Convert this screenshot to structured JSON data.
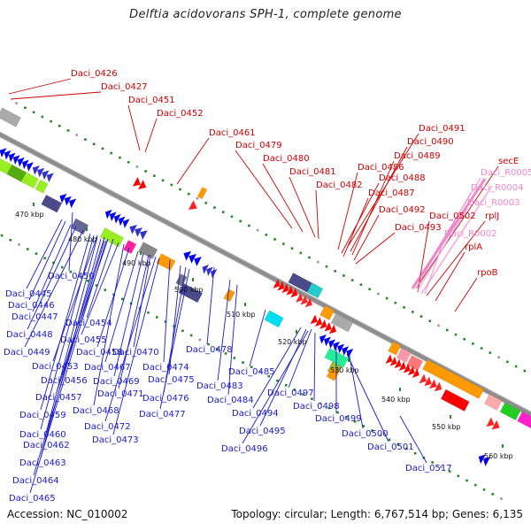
{
  "title": "Delftia acidovorans SPH-1, complete genome",
  "footer": {
    "accession": "Accession: NC_010002",
    "summary": "Topology: circular; Length: 6,767,514 bp; Genes: 6,135"
  },
  "colors": {
    "forward_label": "#cc0000",
    "reverse_label": "#1a1acc",
    "rna_label": "#ee88cc",
    "backbone": "#8c8c8c",
    "tick": "#228b22"
  },
  "kbp_ticks": [
    "470 kbp",
    "480 kbp",
    "490 kbp",
    "500 kbp",
    "510 kbp",
    "520 kbp",
    "530 kbp",
    "540 kbp",
    "550 kbp",
    "560 kbp"
  ],
  "upper_labels": [
    {
      "text": "Daci_0426",
      "color": "red"
    },
    {
      "text": "Daci_0427",
      "color": "red"
    },
    {
      "text": "Daci_0451",
      "color": "red"
    },
    {
      "text": "Daci_0452",
      "color": "red"
    },
    {
      "text": "Daci_0461",
      "color": "red"
    },
    {
      "text": "Daci_0479",
      "color": "red"
    },
    {
      "text": "Daci_0480",
      "color": "red"
    },
    {
      "text": "Daci_0481",
      "color": "red"
    },
    {
      "text": "Daci_0482",
      "color": "red"
    },
    {
      "text": "Daci_0486",
      "color": "red"
    },
    {
      "text": "Daci_0488",
      "color": "red"
    },
    {
      "text": "Daci_0487",
      "color": "red"
    },
    {
      "text": "Daci_0492",
      "color": "red"
    },
    {
      "text": "Daci_0493",
      "color": "red"
    },
    {
      "text": "Daci_0491",
      "color": "red"
    },
    {
      "text": "Daci_0490",
      "color": "red"
    },
    {
      "text": "Daci_0489",
      "color": "red"
    },
    {
      "text": "Daci_0502",
      "color": "red"
    },
    {
      "text": "secE",
      "color": "red"
    },
    {
      "text": "Daci_R0005",
      "color": "pink"
    },
    {
      "text": "Daci_R0004",
      "color": "pink"
    },
    {
      "text": "Daci_R0003",
      "color": "pink"
    },
    {
      "text": "rplJ",
      "color": "red"
    },
    {
      "text": "Daci_R0002",
      "color": "pink"
    },
    {
      "text": "rplA",
      "color": "red"
    },
    {
      "text": "rpoB",
      "color": "red"
    }
  ],
  "lower_labels": [
    "Daci_0445",
    "Daci_0450",
    "Daci_0446",
    "Daci_0447",
    "Daci_0448",
    "Daci_0449",
    "Daci_0454",
    "Daci_0455",
    "Daci_0453",
    "Daci_0458",
    "Daci_0470",
    "Daci_0478",
    "Daci_0467",
    "Daci_0474",
    "Daci_0456",
    "Daci_0469",
    "Daci_0475",
    "Daci_0483",
    "Daci_0485",
    "Daci_0471",
    "Daci_0457",
    "Daci_0476",
    "Daci_0484",
    "Daci_0468",
    "Daci_0459",
    "Daci_0477",
    "Daci_0472",
    "Daci_0460",
    "Daci_0473",
    "Daci_0462",
    "Daci_0463",
    "Daci_0464",
    "Daci_0465",
    "Daci_0497",
    "Daci_0498",
    "Daci_0494",
    "Daci_0499",
    "Daci_0495",
    "Daci_0500",
    "Daci_0496",
    "Daci_0501",
    "Daci_0517"
  ]
}
